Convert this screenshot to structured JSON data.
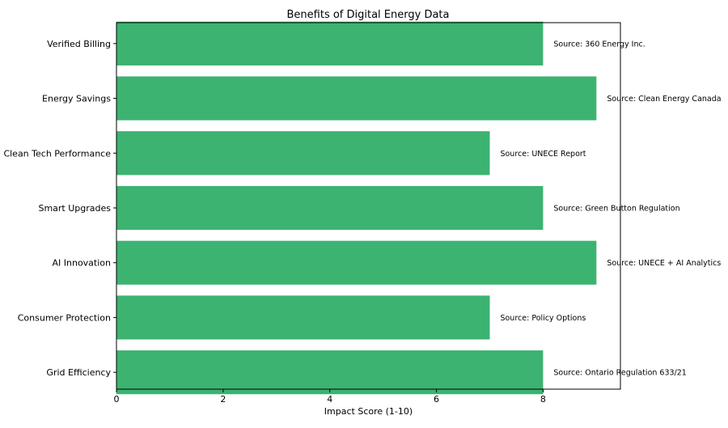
{
  "chart_data": {
    "type": "bar",
    "orientation": "horizontal",
    "title": "Benefits of Digital Energy Data",
    "xlabel": "Impact Score (1-10)",
    "ylabel": "",
    "xlim": [
      0,
      9.45
    ],
    "xticks": [
      0,
      2,
      4,
      6,
      8
    ],
    "grid": false,
    "bar_color": "#3cb371",
    "categories": [
      "Grid Efficiency",
      "Consumer Protection",
      "AI Innovation",
      "Smart Upgrades",
      "Clean Tech Performance",
      "Energy Savings",
      "Verified Billing"
    ],
    "values": [
      8,
      7,
      9,
      8,
      7,
      9,
      8
    ],
    "annotations": [
      "Source: Ontario Regulation 633/21",
      "Source: Policy Options",
      "Source: UNECE + AI Analytics",
      "Source: Green Button Regulation",
      "Source: UNECE Report",
      "Source: Clean Energy Canada",
      "Source: 360 Energy Inc."
    ]
  }
}
